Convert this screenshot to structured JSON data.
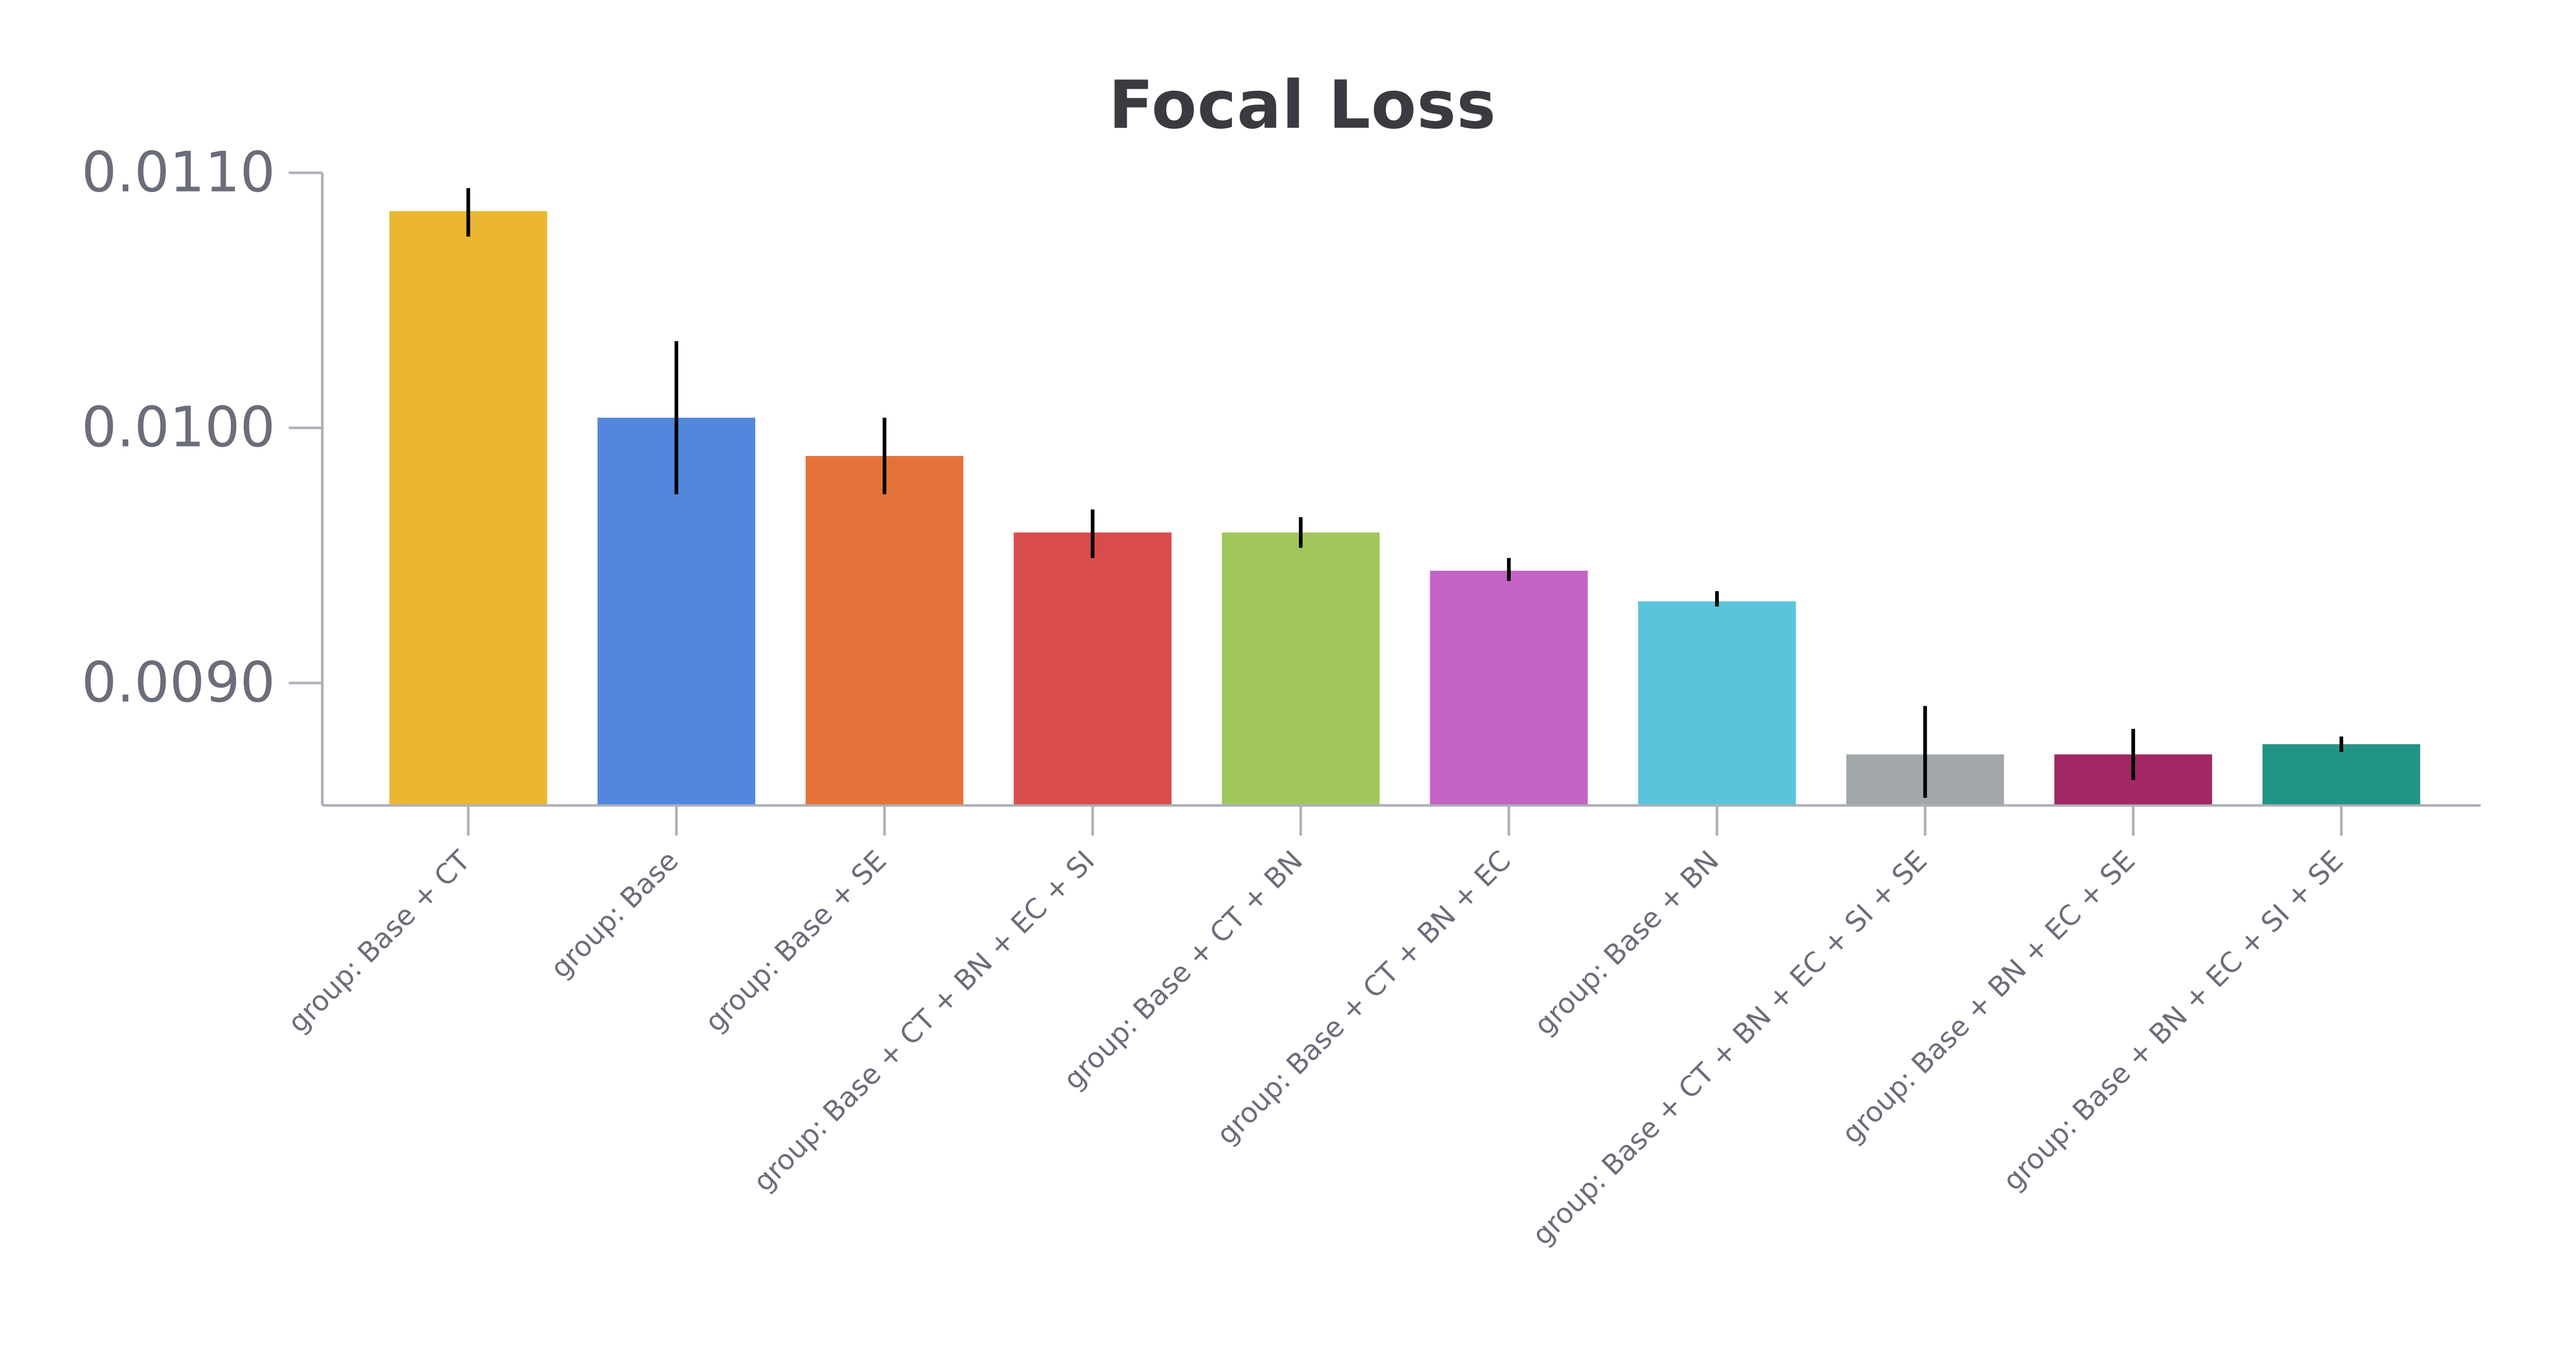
{
  "chart_data": {
    "type": "bar",
    "title": "Focal Loss",
    "xlabel": "",
    "ylabel": "",
    "ylim": [
      0.00852,
      0.011
    ],
    "yticks": [
      0.009,
      0.01,
      0.011
    ],
    "ytick_labels": [
      "0.0090",
      "0.0100",
      "0.0110"
    ],
    "grid": false,
    "categories": [
      "group: Base + CT",
      "group: Base",
      "group: Base + SE",
      "group: Base + CT + BN + EC + SI",
      "group: Base + CT + BN",
      "group: Base + CT + BN + EC",
      "group: Base + BN",
      "group: Base + CT + BN + EC + SI + SE",
      "group: Base + BN + EC + SE",
      "group: Base + BN + EC + SI + SE"
    ],
    "values": [
      0.01085,
      0.01004,
      0.00989,
      0.00959,
      0.00959,
      0.00944,
      0.00932,
      0.00872,
      0.00872,
      0.00876
    ],
    "error_low": [
      0.01075,
      0.00974,
      0.00974,
      0.00949,
      0.00953,
      0.0094,
      0.0093,
      0.00855,
      0.00862,
      0.00873
    ],
    "error_high": [
      0.01094,
      0.01034,
      0.01004,
      0.00968,
      0.00965,
      0.00949,
      0.00936,
      0.00891,
      0.00882,
      0.00879
    ],
    "colors": [
      "#ebb631",
      "#5287dd",
      "#e37339",
      "#da4c4c",
      "#a1c65c",
      "#c464c5",
      "#5bc4da",
      "#a2a7aa",
      "#a12864",
      "#229487"
    ]
  }
}
